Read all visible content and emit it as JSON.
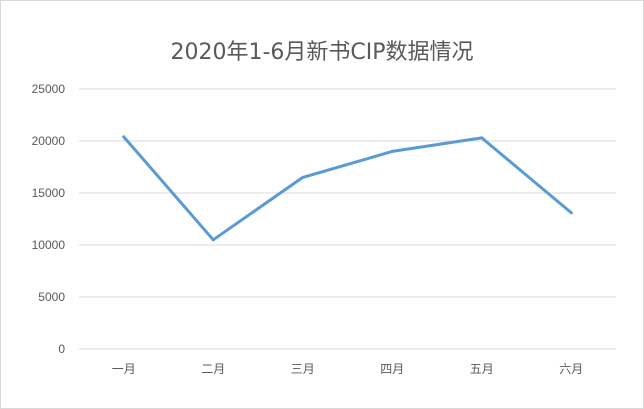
{
  "chart_data": {
    "type": "line",
    "title": "2020年1-6月新书CIP数据情况",
    "categories": [
      "一月",
      "二月",
      "三月",
      "四月",
      "五月",
      "六月"
    ],
    "series": [
      {
        "values": [
          20400,
          10500,
          16500,
          19000,
          20300,
          13100
        ]
      }
    ],
    "ylim": [
      0,
      25000
    ],
    "yticks": [
      "0",
      "5000",
      "10000",
      "15000",
      "20000",
      "25000"
    ],
    "grid": true,
    "legend": "none",
    "line_color": "#5b9bd5"
  }
}
